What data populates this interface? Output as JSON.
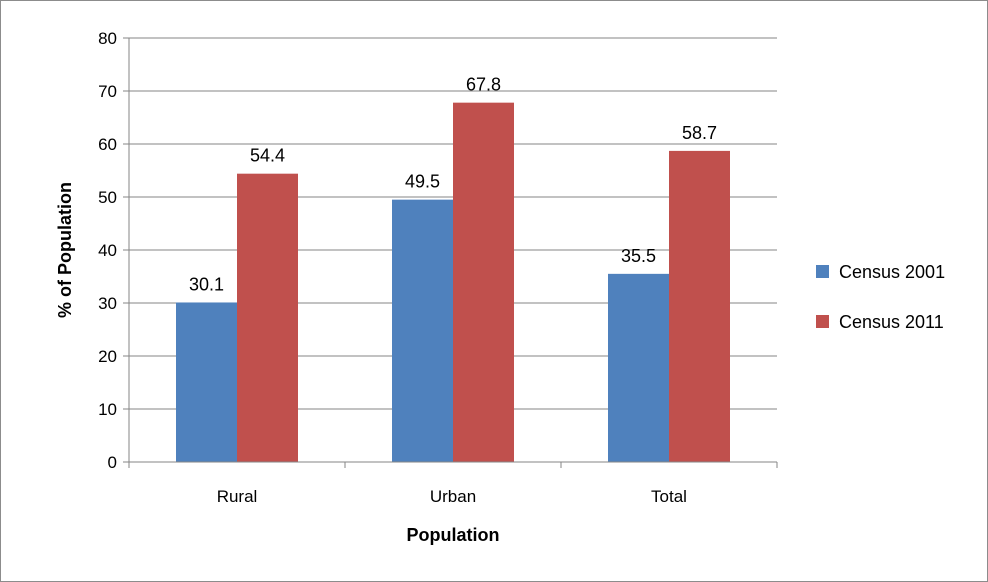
{
  "chart_data": {
    "type": "bar",
    "categories": [
      "Rural",
      "Urban",
      "Total"
    ],
    "series": [
      {
        "name": "Census 2001",
        "values": [
          30.1,
          49.5,
          35.5
        ],
        "color": "#4F81BD"
      },
      {
        "name": "Census 2011",
        "values": [
          54.4,
          67.8,
          58.7
        ],
        "color": "#C0504D"
      }
    ],
    "xlabel": "Population",
    "ylabel": "% of Population",
    "ylim": [
      0,
      80
    ],
    "yticks": [
      0,
      10,
      20,
      30,
      40,
      50,
      60,
      70,
      80
    ],
    "grid": true,
    "legend_position": "right",
    "data_labels": true
  }
}
